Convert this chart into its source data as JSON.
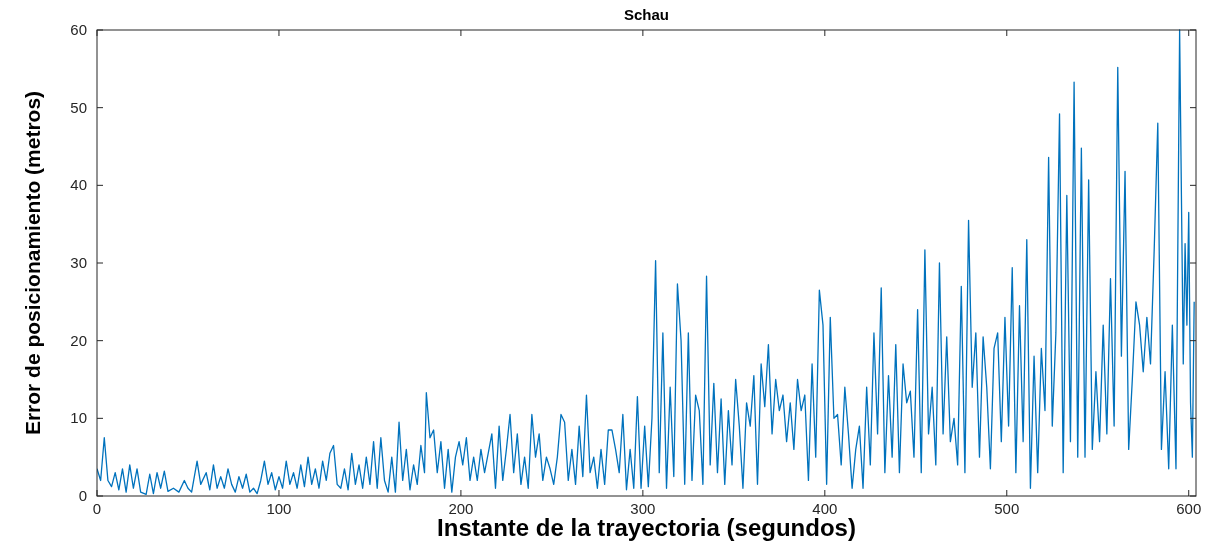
{
  "chart_data": {
    "type": "line",
    "title": "Schau",
    "xlabel": "Instante de la trayectoria (segundos)",
    "ylabel": "Error de posicionamiento (metros)",
    "xlim": [
      0,
      604
    ],
    "ylim": [
      0,
      60
    ],
    "xticks": [
      0,
      100,
      200,
      300,
      400,
      500,
      600
    ],
    "yticks": [
      0,
      10,
      20,
      30,
      40,
      50,
      60
    ],
    "marker": "none",
    "line_style": "solid",
    "x": [
      0,
      2,
      4,
      6,
      8,
      10,
      12,
      14,
      16,
      18,
      20,
      22,
      24,
      27,
      29,
      31,
      33,
      35,
      37,
      39,
      42,
      45,
      48,
      50,
      52,
      55,
      57,
      60,
      62,
      64,
      66,
      68,
      70,
      72,
      74,
      76,
      78,
      80,
      82,
      84,
      86,
      88,
      90,
      92,
      94,
      96,
      98,
      100,
      102,
      104,
      106,
      108,
      110,
      112,
      114,
      116,
      118,
      120,
      122,
      124,
      126,
      128,
      130,
      132,
      134,
      136,
      138,
      140,
      142,
      144,
      146,
      148,
      150,
      152,
      154,
      156,
      158,
      160,
      162,
      164,
      166,
      168,
      170,
      172,
      174,
      176,
      178,
      180,
      181,
      183,
      185,
      187,
      189,
      191,
      193,
      195,
      197,
      199,
      201,
      203,
      205,
      207,
      209,
      211,
      213,
      215,
      217,
      219,
      221,
      223,
      225,
      227,
      229,
      231,
      233,
      235,
      237,
      239,
      241,
      243,
      245,
      247,
      249,
      251,
      253,
      255,
      257,
      259,
      261,
      263,
      265,
      267,
      269,
      271,
      273,
      275,
      277,
      279,
      281,
      283,
      285,
      287,
      289,
      291,
      293,
      295,
      297,
      299,
      301,
      303,
      305,
      307,
      309,
      311,
      313,
      315,
      317,
      319,
      321,
      323,
      325,
      327,
      329,
      331,
      333,
      335,
      337,
      339,
      341,
      343,
      345,
      347,
      349,
      351,
      353,
      355,
      357,
      359,
      361,
      363,
      365,
      367,
      369,
      371,
      373,
      375,
      377,
      379,
      381,
      383,
      385,
      387,
      389,
      391,
      393,
      395,
      397,
      399,
      401,
      403,
      405,
      407,
      409,
      411,
      413,
      415,
      417,
      419,
      421,
      423,
      425,
      427,
      429,
      431,
      433,
      435,
      437,
      439,
      441,
      443,
      445,
      447,
      449,
      451,
      453,
      455,
      457,
      459,
      461,
      463,
      465,
      467,
      469,
      471,
      473,
      475,
      477,
      479,
      481,
      483,
      485,
      487,
      489,
      491,
      493,
      495,
      497,
      499,
      501,
      503,
      505,
      507,
      509,
      511,
      513,
      515,
      517,
      519,
      521,
      523,
      525,
      527,
      529,
      531,
      533,
      535,
      537,
      539,
      541,
      543,
      545,
      547,
      549,
      551,
      553,
      555,
      557,
      559,
      561,
      563,
      565,
      567,
      569,
      571,
      573,
      575,
      577,
      579,
      581,
      583,
      585,
      587,
      589,
      591,
      593,
      595,
      597,
      598,
      599,
      600,
      601,
      602,
      603
    ],
    "series": [
      {
        "color": "#0072bd",
        "values": [
          3.5,
          2,
          7.5,
          2,
          1.2,
          3,
          0.8,
          3.5,
          0.5,
          4,
          1,
          3.5,
          0.5,
          0.2,
          2.8,
          0.3,
          3,
          1,
          3.2,
          0.6,
          1,
          0.5,
          2,
          1,
          0.5,
          4.5,
          1.5,
          3,
          0.8,
          4,
          1,
          2.5,
          1,
          3.5,
          1.5,
          0.5,
          2.5,
          1,
          2.8,
          0.5,
          1,
          0.3,
          2,
          4.5,
          1.5,
          3,
          0.8,
          2.5,
          1,
          4.5,
          1.5,
          3,
          1,
          4,
          1.2,
          5,
          1.5,
          3.5,
          1,
          4.5,
          2,
          5.5,
          6.5,
          1.5,
          1,
          3.5,
          0.8,
          5.5,
          1.5,
          4,
          1,
          5,
          1.5,
          7,
          1,
          7.5,
          2,
          0.5,
          5,
          0.5,
          9.5,
          2,
          6,
          0.8,
          4,
          1.5,
          6.5,
          3,
          13.3,
          7.5,
          8.5,
          3,
          7,
          1,
          6,
          0.5,
          5,
          7,
          4,
          7.5,
          2,
          5,
          2,
          6,
          3,
          5.5,
          8,
          1,
          9,
          2,
          6,
          10.5,
          3,
          8,
          1.5,
          5,
          1,
          10.5,
          5,
          8,
          2,
          5,
          3.5,
          1.5,
          5,
          10.5,
          9.5,
          2,
          6,
          1.5,
          9,
          2.5,
          13,
          3,
          5,
          1,
          6,
          1.5,
          8.5,
          8.5,
          6,
          3,
          10.5,
          0.8,
          6,
          1,
          12.8,
          1,
          9,
          1.2,
          10,
          30.3,
          3,
          21,
          1,
          14,
          2.5,
          27.3,
          20,
          1.5,
          21,
          2,
          13,
          11,
          1.5,
          28.3,
          4,
          14.5,
          3,
          12.5,
          1.5,
          11,
          4,
          15,
          9,
          1,
          12,
          9,
          15.5,
          1.5,
          17,
          11.5,
          19.5,
          8,
          15,
          11,
          13,
          7,
          12,
          6,
          15,
          11,
          13,
          2,
          17,
          5,
          26.5,
          22,
          1.5,
          23,
          10,
          10.5,
          4,
          14,
          8,
          1,
          6,
          9,
          1,
          14,
          4,
          21,
          8,
          26.8,
          3,
          15.5,
          5,
          19.5,
          3,
          17,
          12,
          13.5,
          5,
          24,
          3,
          31.7,
          8,
          14,
          4,
          30,
          8,
          20.5,
          7,
          10,
          4,
          27,
          3,
          35.5,
          14,
          21,
          5,
          20.5,
          14,
          3.5,
          19,
          21,
          7,
          23,
          9,
          29.4,
          3,
          24.5,
          7,
          33,
          1,
          18,
          3,
          19,
          11,
          43.6,
          9,
          21,
          49.2,
          3,
          38.7,
          7,
          53.3,
          5,
          44.8,
          5,
          40.7,
          6,
          16,
          7,
          22,
          8,
          28,
          9,
          55.2,
          18,
          41.8,
          6,
          15,
          25,
          22,
          16,
          23,
          17,
          31.5,
          48,
          6,
          16,
          3.5,
          22,
          3.5,
          60,
          17,
          32.5,
          22,
          36.5,
          12,
          5,
          25
        ]
      }
    ]
  }
}
